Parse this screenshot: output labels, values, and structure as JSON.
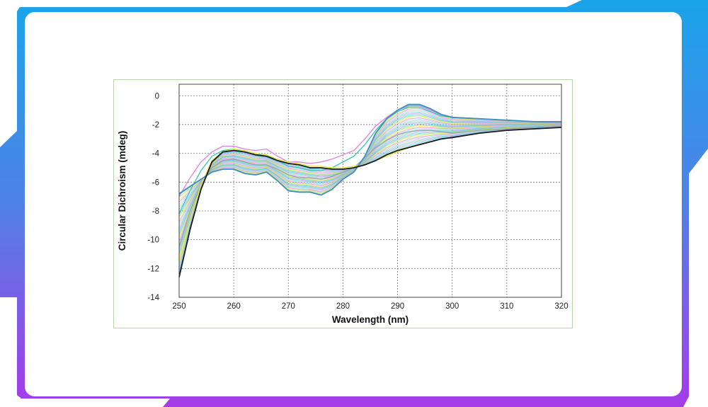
{
  "theme": {
    "gradient_top": "#1aa4e8",
    "gradient_mid": "#4f82e6",
    "gradient_bottom": "#a63be8",
    "card_background": "#ffffff",
    "chart_border": "#b9d3a8"
  },
  "chart_data": {
    "type": "line",
    "title": "",
    "xlabel": "Wavelength (nm)",
    "ylabel": "Circular Dichroism (mdeg)",
    "xlim": [
      250,
      320
    ],
    "ylim": [
      -14,
      0.8
    ],
    "x_ticks": [
      250,
      260,
      270,
      280,
      290,
      300,
      310,
      320
    ],
    "y_ticks": [
      0,
      -2,
      -4,
      -6,
      -8,
      -10,
      -12,
      -14
    ],
    "grid": true,
    "legend": "none",
    "series_count": 40,
    "series": [
      {
        "color": "#3b8fc4",
        "x": [
          250,
          252,
          254,
          256,
          258,
          260,
          262,
          264,
          266,
          268,
          270,
          272,
          274,
          276,
          278,
          280,
          282,
          284,
          286,
          288,
          290,
          292,
          294,
          296,
          298,
          300,
          305,
          310,
          315,
          320
        ],
        "y": [
          -6.8,
          -6.3,
          -5.8,
          -5.3,
          -5.1,
          -5.1,
          -5.4,
          -5.5,
          -5.3,
          -5.9,
          -6.6,
          -6.7,
          -6.7,
          -6.9,
          -6.5,
          -5.8,
          -5.3,
          -4.2,
          -2.6,
          -1.6,
          -1.0,
          -0.6,
          -0.6,
          -0.9,
          -1.3,
          -1.5,
          -1.6,
          -1.7,
          -1.8,
          -1.8
        ]
      },
      {
        "color": "#1a1a1a",
        "x": [
          250,
          252,
          254,
          256,
          258,
          260,
          262,
          264,
          266,
          268,
          270,
          272,
          274,
          276,
          278,
          280,
          282,
          284,
          286,
          288,
          290,
          292,
          294,
          296,
          298,
          300,
          305,
          310,
          315,
          320
        ],
        "y": [
          -12.6,
          -9.3,
          -6.5,
          -4.6,
          -3.9,
          -3.8,
          -3.9,
          -4.1,
          -4.2,
          -4.5,
          -4.7,
          -4.8,
          -5.0,
          -5.0,
          -5.1,
          -5.1,
          -5.0,
          -4.8,
          -4.5,
          -4.1,
          -3.8,
          -3.6,
          -3.4,
          -3.2,
          -3.0,
          -2.9,
          -2.6,
          -2.4,
          -2.3,
          -2.2
        ]
      },
      {
        "color": "#e07ee8",
        "x": [
          250,
          252,
          254,
          256,
          258,
          260,
          262,
          264,
          266,
          268,
          270,
          272,
          274,
          276,
          278,
          280,
          282,
          284,
          286,
          288,
          290,
          292,
          294,
          296,
          298,
          300,
          305,
          310,
          315,
          320
        ],
        "y": [
          -7.0,
          -5.7,
          -4.6,
          -3.9,
          -3.5,
          -3.5,
          -3.7,
          -3.8,
          -3.7,
          -4.2,
          -4.6,
          -4.6,
          -4.7,
          -4.6,
          -4.4,
          -4.1,
          -3.8,
          -3.0,
          -2.1,
          -1.5,
          -1.0,
          -0.7,
          -0.7,
          -1.0,
          -1.3,
          -1.5,
          -1.6,
          -1.7,
          -1.8,
          -1.9
        ]
      },
      {
        "color": "#9aa1a6",
        "x": [
          250,
          252,
          254,
          256,
          258,
          260,
          262,
          264,
          266,
          268,
          270,
          272,
          274,
          276,
          278,
          280,
          282,
          284,
          286,
          288,
          290,
          292,
          294,
          296,
          298,
          300,
          305,
          310,
          315,
          320
        ],
        "y": [
          -10.5,
          -8.0,
          -6.2,
          -5.0,
          -4.5,
          -4.4,
          -4.6,
          -4.8,
          -4.8,
          -5.1,
          -5.5,
          -5.7,
          -5.7,
          -5.8,
          -5.6,
          -5.3,
          -5.0,
          -4.3,
          -3.6,
          -3.1,
          -2.7,
          -2.5,
          -2.4,
          -2.4,
          -2.5,
          -2.6,
          -2.4,
          -2.3,
          -2.2,
          -2.1
        ]
      },
      {
        "color": "#e8e23a",
        "x": [
          250,
          252,
          254,
          256,
          258,
          260,
          262,
          264,
          266,
          268,
          270,
          272,
          274,
          276,
          278,
          280,
          282,
          284,
          286,
          288,
          290,
          292,
          294,
          296,
          298,
          300,
          305,
          310,
          315,
          320
        ],
        "y": [
          -11.6,
          -8.6,
          -6.2,
          -4.5,
          -3.9,
          -3.7,
          -3.8,
          -4.0,
          -4.1,
          -4.4,
          -4.6,
          -4.7,
          -4.9,
          -4.9,
          -5.0,
          -5.0,
          -4.9,
          -4.8,
          -4.5,
          -4.2,
          -3.9,
          -3.6,
          -3.4,
          -3.2,
          -3.0,
          -2.9,
          -2.6,
          -2.4,
          -2.3,
          -2.2
        ]
      },
      {
        "color": "#35c4b8",
        "x": [
          250,
          252,
          254,
          256,
          258,
          260,
          262,
          264,
          266,
          268,
          270,
          272,
          274,
          276,
          278,
          280,
          282,
          284,
          286,
          288,
          290,
          292,
          294,
          296,
          298,
          300,
          305,
          310,
          315,
          320
        ],
        "y": [
          -8.2,
          -6.6,
          -5.2,
          -4.2,
          -3.8,
          -3.7,
          -3.9,
          -4.1,
          -4.1,
          -4.5,
          -4.9,
          -5.0,
          -5.2,
          -5.2,
          -5.0,
          -4.6,
          -4.2,
          -3.4,
          -2.4,
          -1.6,
          -1.1,
          -0.8,
          -0.8,
          -1.1,
          -1.4,
          -1.5,
          -1.6,
          -1.7,
          -1.8,
          -1.8
        ]
      }
    ]
  }
}
